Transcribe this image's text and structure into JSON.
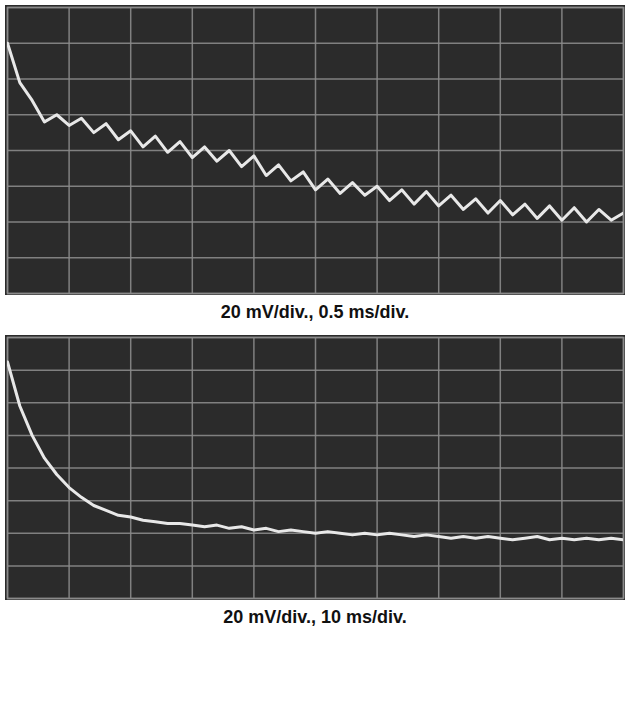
{
  "chart_data": [
    {
      "type": "line",
      "title": "20 mV/div., 0.5 ms/div.",
      "x": [
        0,
        0.1,
        0.2,
        0.3,
        0.4,
        0.5,
        0.6,
        0.7,
        0.8,
        0.9,
        1.0,
        1.1,
        1.2,
        1.3,
        1.4,
        1.5,
        1.6,
        1.7,
        1.8,
        1.9,
        2.0,
        2.1,
        2.2,
        2.3,
        2.4,
        2.5,
        2.6,
        2.7,
        2.8,
        2.9,
        3.0,
        3.1,
        3.2,
        3.3,
        3.4,
        3.5,
        3.6,
        3.7,
        3.8,
        3.9,
        4.0,
        4.1,
        4.2,
        4.3,
        4.4,
        4.5,
        4.6,
        4.7,
        4.8,
        4.9,
        5.0
      ],
      "values": [
        140,
        118,
        108,
        96,
        100,
        94,
        98,
        90,
        95,
        86,
        91,
        82,
        88,
        79,
        85,
        76,
        82,
        74,
        80,
        71,
        77,
        66,
        72,
        63,
        68,
        58,
        64,
        56,
        62,
        55,
        60,
        52,
        58,
        50,
        57,
        49,
        55,
        47,
        53,
        45,
        52,
        44,
        50,
        42,
        49,
        41,
        48,
        40,
        47,
        41,
        45
      ],
      "color": "#e8e8e8",
      "xlim": [
        0,
        5
      ],
      "ylim": [
        0,
        160
      ],
      "xticks": [
        0,
        0.5,
        1,
        1.5,
        2,
        2.5,
        3,
        3.5,
        4,
        4.5,
        5
      ],
      "yticks": [
        0,
        20,
        40,
        60,
        80,
        100,
        120,
        140,
        160
      ],
      "grid": true,
      "tick_labels": false
    },
    {
      "type": "line",
      "title": "20 mV/div., 10 ms/div.",
      "x": [
        0,
        2,
        4,
        6,
        8,
        10,
        12,
        14,
        16,
        18,
        20,
        22,
        24,
        26,
        28,
        30,
        32,
        34,
        36,
        38,
        40,
        42,
        44,
        46,
        48,
        50,
        52,
        54,
        56,
        58,
        60,
        62,
        64,
        66,
        68,
        70,
        72,
        74,
        76,
        78,
        80,
        82,
        84,
        86,
        88,
        90,
        92,
        94,
        96,
        98,
        100
      ],
      "values": [
        145,
        118,
        100,
        86,
        76,
        68,
        62,
        57,
        54,
        51,
        50,
        48,
        47,
        46,
        46,
        45,
        44,
        45,
        43,
        44,
        42,
        43,
        41,
        42,
        41,
        40,
        41,
        40,
        39,
        40,
        39,
        40,
        39,
        38,
        39,
        38,
        37,
        38,
        37,
        38,
        37,
        36,
        37,
        38,
        36,
        37,
        36,
        37,
        36,
        37,
        36
      ],
      "color": "#e8e8e8",
      "xlim": [
        0,
        100
      ],
      "ylim": [
        0,
        160
      ],
      "xticks": [
        0,
        10,
        20,
        30,
        40,
        50,
        60,
        70,
        80,
        90,
        100
      ],
      "yticks": [
        0,
        20,
        40,
        60,
        80,
        100,
        120,
        140,
        160
      ],
      "grid": true,
      "tick_labels": false
    }
  ]
}
